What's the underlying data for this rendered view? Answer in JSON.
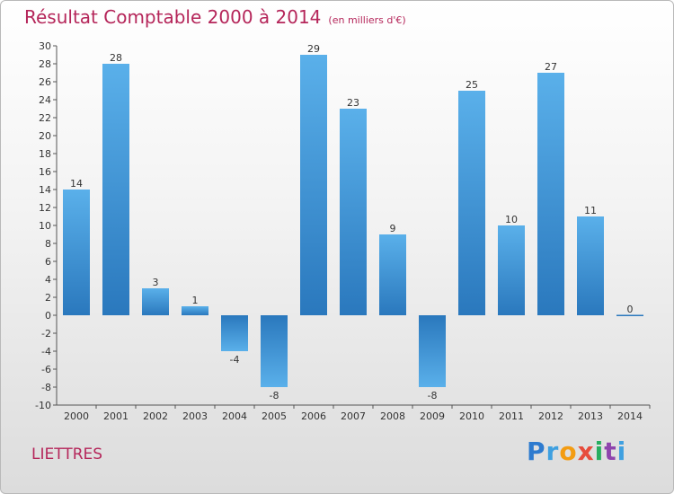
{
  "title": "Résultat Comptable 2000 à 2014",
  "subtitle": "(en milliers d'€)",
  "commune": "LIETTRES",
  "logo": "Proxiti",
  "chart_data": {
    "type": "bar",
    "title": "Résultat Comptable 2000 à 2014",
    "subtitle": "(en milliers d'€)",
    "categories": [
      "2000",
      "2001",
      "2002",
      "2003",
      "2004",
      "2005",
      "2006",
      "2007",
      "2008",
      "2009",
      "2010",
      "2011",
      "2012",
      "2013",
      "2014"
    ],
    "values": [
      14,
      28,
      3,
      1,
      -4,
      -8,
      29,
      23,
      9,
      -8,
      25,
      10,
      27,
      11,
      0
    ],
    "ylim": [
      -10,
      30
    ],
    "yticks": [
      -10,
      -8,
      -6,
      -4,
      -2,
      0,
      2,
      4,
      6,
      8,
      10,
      12,
      14,
      16,
      18,
      20,
      22,
      24,
      26,
      28,
      30
    ],
    "grid": false,
    "colors": {
      "bar_light": "#5ab0ea",
      "bar_dark": "#2a78bd"
    }
  }
}
